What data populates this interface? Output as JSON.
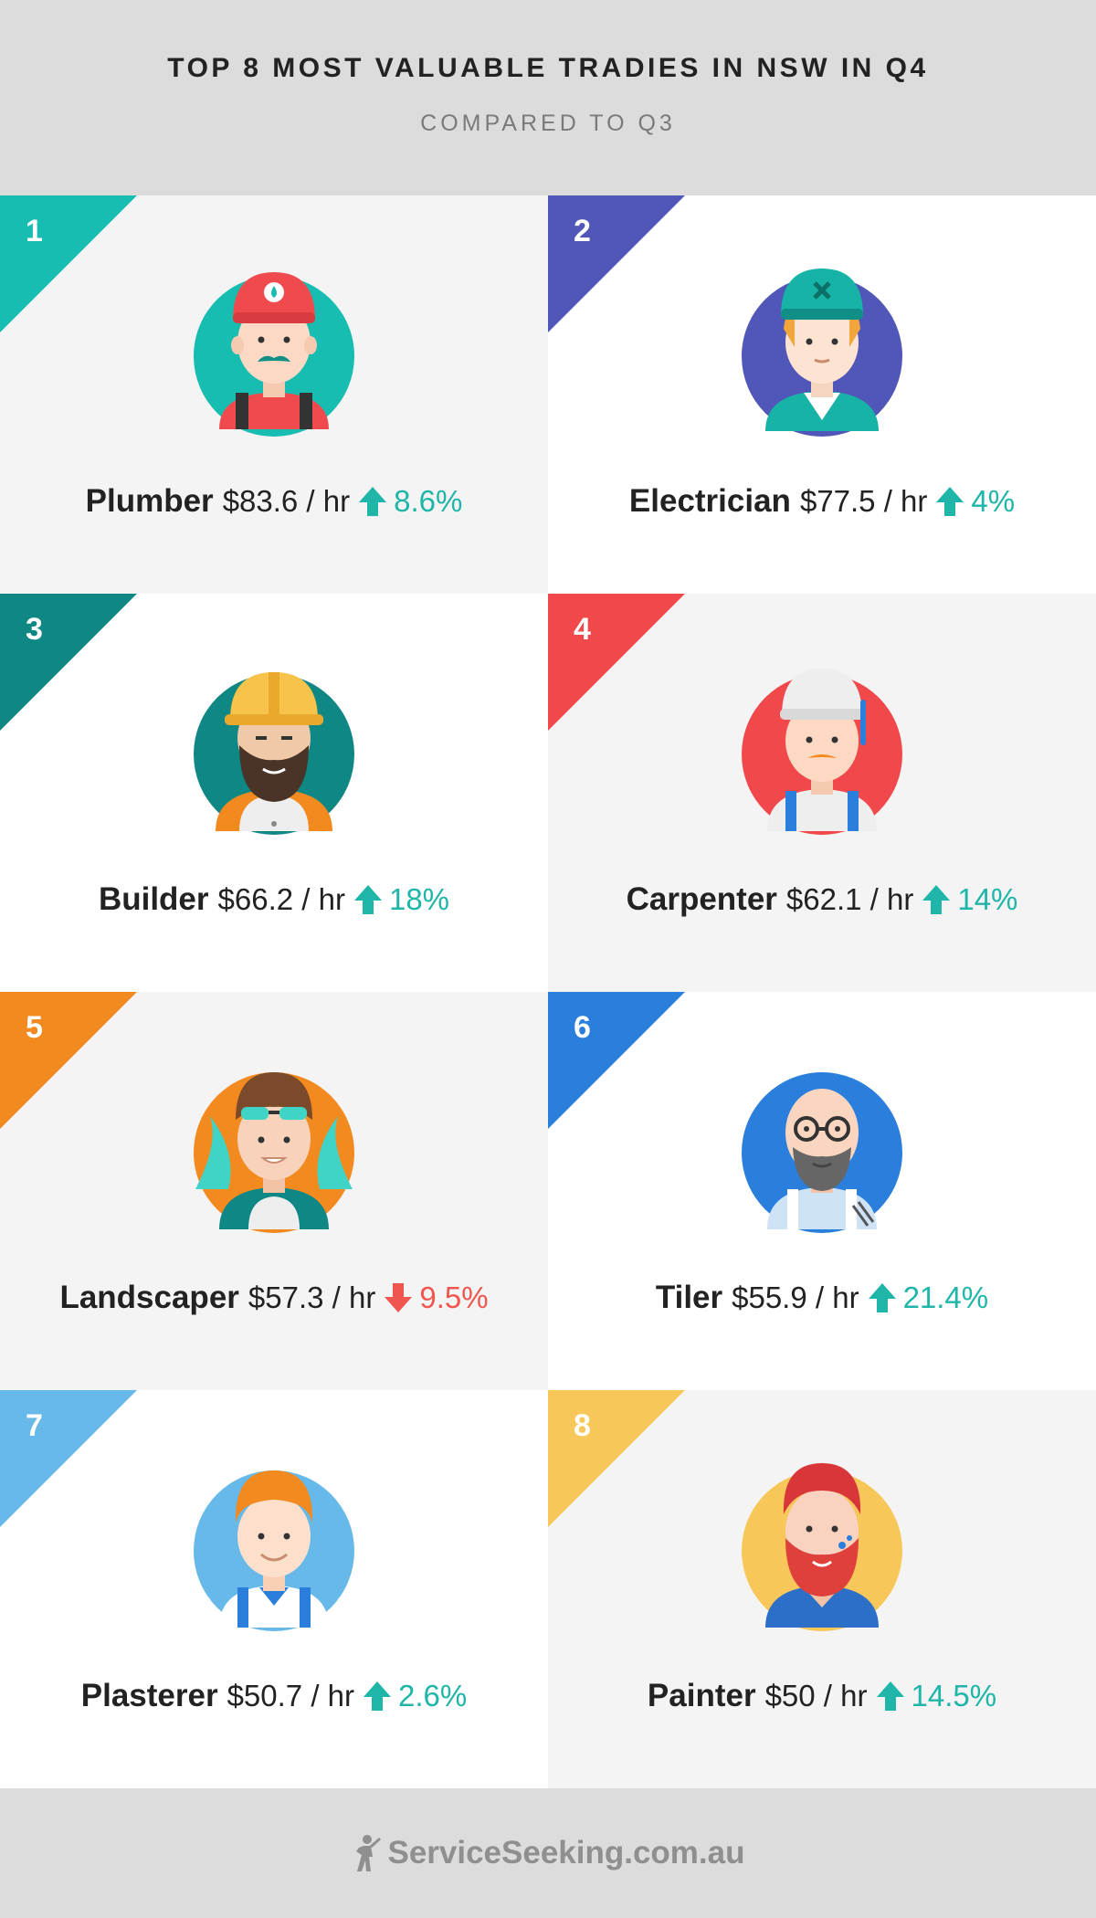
{
  "header": {
    "title": "TOP 8 MOST VALUABLE TRADIES IN NSW IN Q4",
    "subtitle": "COMPARED TO Q3"
  },
  "tradies": [
    {
      "rank": "1",
      "trade": "Plumber",
      "rate": "$83.6 / hr",
      "change": "8.6%",
      "direction": "up",
      "rate_value": 83.6,
      "change_value": 8.6,
      "color": "#18bdb1",
      "avatar": "plumber-avatar-icon"
    },
    {
      "rank": "2",
      "trade": "Electrician",
      "rate": "$77.5 / hr",
      "change": "4%",
      "direction": "up",
      "rate_value": 77.5,
      "change_value": 4,
      "color": "#5156b9",
      "avatar": "electrician-avatar-icon"
    },
    {
      "rank": "3",
      "trade": "Builder",
      "rate": "$66.2 / hr",
      "change": "18%",
      "direction": "up",
      "rate_value": 66.2,
      "change_value": 18,
      "color": "#0e8785",
      "avatar": "builder-avatar-icon"
    },
    {
      "rank": "4",
      "trade": "Carpenter",
      "rate": "$62.1 / hr",
      "change": "14%",
      "direction": "up",
      "rate_value": 62.1,
      "change_value": 14,
      "color": "#f0484b",
      "avatar": "carpenter-avatar-icon"
    },
    {
      "rank": "5",
      "trade": "Landscaper",
      "rate": "$57.3 / hr",
      "change": "9.5%",
      "direction": "down",
      "rate_value": 57.3,
      "change_value": -9.5,
      "color": "#f28a20",
      "avatar": "landscaper-avatar-icon"
    },
    {
      "rank": "6",
      "trade": "Tiler",
      "rate": "$55.9 / hr",
      "change": "21.4%",
      "direction": "up",
      "rate_value": 55.9,
      "change_value": 21.4,
      "color": "#2b7fdc",
      "avatar": "tiler-avatar-icon"
    },
    {
      "rank": "7",
      "trade": "Plasterer",
      "rate": "$50.7 / hr",
      "change": "2.6%",
      "direction": "up",
      "rate_value": 50.7,
      "change_value": 2.6,
      "color": "#66b9e8",
      "avatar": "plasterer-avatar-icon"
    },
    {
      "rank": "8",
      "trade": "Painter",
      "rate": "$50 / hr",
      "change": "14.5%",
      "direction": "up",
      "rate_value": 50,
      "change_value": 14.5,
      "color": "#f7c75a",
      "avatar": "painter-avatar-icon"
    }
  ],
  "colors": {
    "up": "#1fb5a9",
    "down": "#ef5650",
    "header_bg": "#dcdcdc",
    "cell_light": "#f4f4f4",
    "cell_white": "#ffffff"
  },
  "footer": {
    "brand": "ServiceSeeking.com.au",
    "logo_icon": "worker-logo-icon"
  }
}
